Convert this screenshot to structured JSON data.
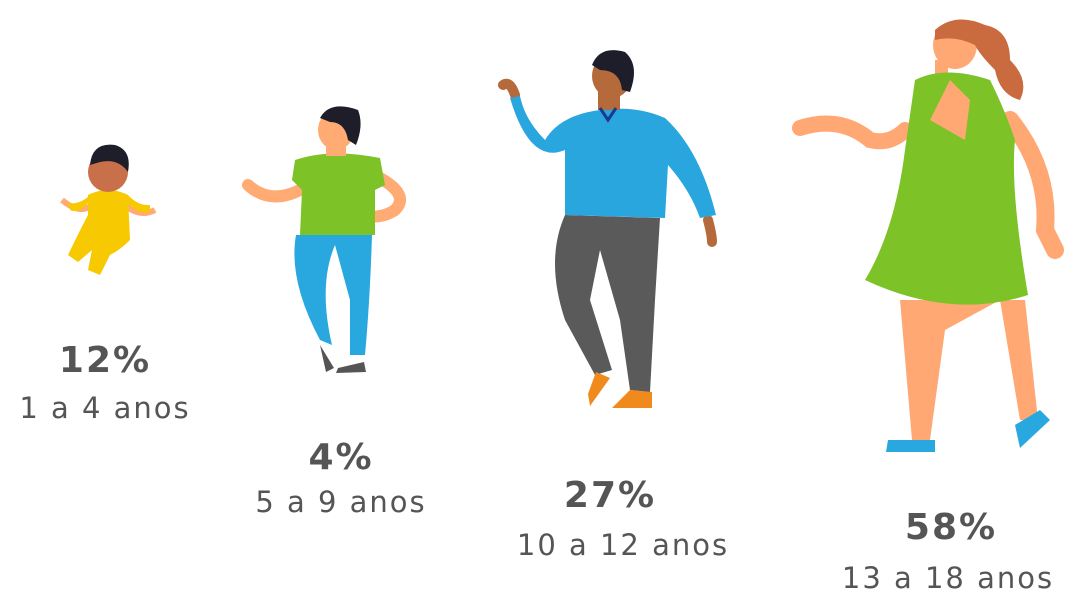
{
  "groups": [
    {
      "percent": "12%",
      "label": "1 a 4 anos"
    },
    {
      "percent": "4%",
      "label": "5 a 9 anos"
    },
    {
      "percent": "27%",
      "label": "10 a 12 anos"
    },
    {
      "percent": "58%",
      "label": "13 a 18 anos"
    }
  ]
}
